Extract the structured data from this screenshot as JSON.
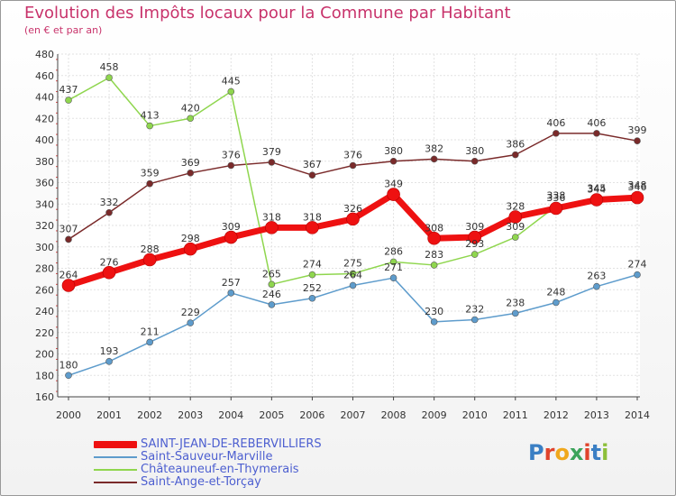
{
  "title": "Evolution des Impôts locaux pour la Commune par Habitant",
  "subtitle": "(en € et par an)",
  "logo": {
    "text": "Proxiti",
    "letters": [
      "P",
      "r",
      "o",
      "x",
      "i",
      "t",
      "i"
    ],
    "colors": [
      "#3a7fc4",
      "#e0432b",
      "#f0a81c",
      "#3ba35a",
      "#e0432b",
      "#3a7fc4",
      "#8cbf3a"
    ]
  },
  "chart_data": {
    "type": "line",
    "title": "Evolution des Impôts locaux pour la Commune par Habitant",
    "subtitle": "(en € et par an)",
    "categories": [
      "2000",
      "2001",
      "2002",
      "2003",
      "2004",
      "2005",
      "2006",
      "2007",
      "2008",
      "2009",
      "2010",
      "2011",
      "2012",
      "2013",
      "2014"
    ],
    "ylim": [
      160,
      480
    ],
    "yticks": [
      160,
      180,
      200,
      220,
      240,
      260,
      280,
      300,
      320,
      340,
      360,
      380,
      400,
      420,
      440,
      460,
      480
    ],
    "grid": true,
    "legend_position": "bottom-left",
    "series": [
      {
        "name": "SAINT-JEAN-DE-REBERVILLIERS",
        "color": "#ee1111",
        "marker": "#ee1111",
        "width": 7,
        "values": [
          264,
          276,
          288,
          298,
          309,
          318,
          318,
          326,
          349,
          308,
          309,
          328,
          336,
          344,
          346
        ],
        "labels": [
          "264",
          "276",
          "288",
          "298",
          "309",
          "318",
          "318",
          "326",
          "349",
          "308",
          "309",
          "328",
          "336",
          "344",
          "346"
        ]
      },
      {
        "name": "Saint-Sauveur-Marville",
        "color": "#5e9ccc",
        "marker": "#5e9ccc",
        "width": 1.5,
        "values": [
          180,
          193,
          211,
          229,
          257,
          246,
          252,
          264,
          271,
          230,
          232,
          238,
          248,
          263,
          274
        ],
        "labels": [
          "180",
          "193",
          "211",
          "229",
          "257",
          "246",
          "252",
          "264",
          "271",
          "230",
          "232",
          "238",
          "248",
          "263",
          "274"
        ]
      },
      {
        "name": "Châteauneuf-en-Thymerais",
        "color": "#8fd64e",
        "marker": "#8fd64e",
        "width": 1.5,
        "values": [
          437,
          458,
          413,
          420,
          445,
          265,
          274,
          275,
          286,
          283,
          293,
          309,
          338,
          345,
          348
        ],
        "labels": [
          "437",
          "458",
          "413",
          "420",
          "445",
          "265",
          "274",
          "275",
          "286",
          "283",
          "293",
          "309",
          "338",
          "345",
          "348"
        ]
      },
      {
        "name": "Saint-Ange-et-Torçay",
        "color": "#7a2a2a",
        "marker": "#7a2a2a",
        "width": 1.5,
        "values": [
          307,
          332,
          359,
          369,
          376,
          379,
          367,
          376,
          380,
          382,
          380,
          386,
          406,
          406,
          399
        ],
        "labels": [
          "307",
          "332",
          "359",
          "369",
          "376",
          "379",
          "367",
          "376",
          "380",
          "382",
          "380",
          "386",
          "406",
          "406",
          "399"
        ]
      }
    ]
  }
}
